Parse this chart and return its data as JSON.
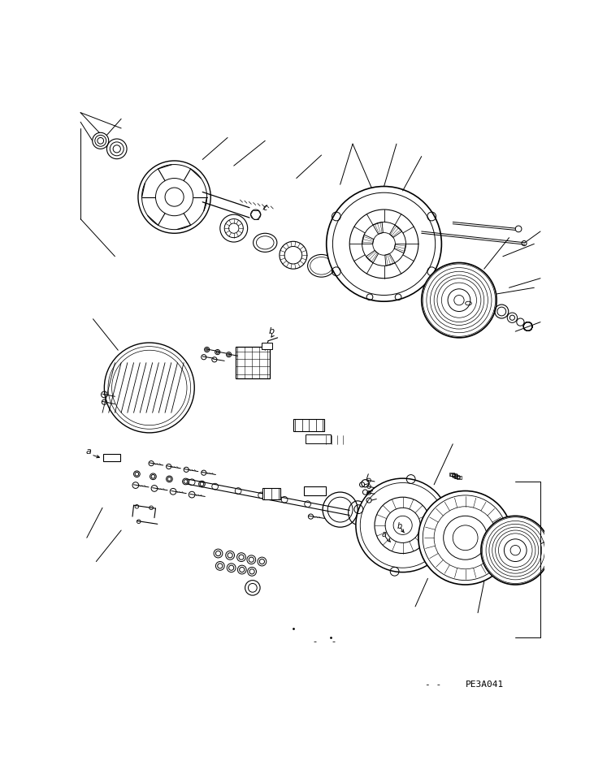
{
  "background_color": "#ffffff",
  "line_color": "#000000",
  "text_color": "#000000",
  "part_code": "PE3A041",
  "label_a": "a",
  "label_b": "b",
  "label_c": "c",
  "label_e": "e",
  "fig_width": 7.47,
  "fig_height": 9.63,
  "dpi": 100
}
